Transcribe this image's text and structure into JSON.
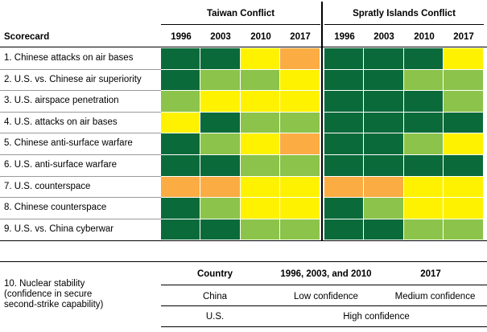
{
  "colors": {
    "dark_green": "#0b6a3a",
    "light_green": "#8cc34a",
    "yellow": "#fff200",
    "orange": "#fbac43"
  },
  "groups": [
    "Taiwan Conflict",
    "Spratly Islands Conflict"
  ],
  "scorecard_header": "Scorecard",
  "years": [
    "1996",
    "2003",
    "2010",
    "2017"
  ],
  "rows": [
    {
      "label": "1. Chinese attacks on air bases",
      "taiwan": [
        "dark_green",
        "dark_green",
        "yellow",
        "orange"
      ],
      "spratly": [
        "dark_green",
        "dark_green",
        "dark_green",
        "yellow"
      ]
    },
    {
      "label": "2. U.S. vs. Chinese air superiority",
      "taiwan": [
        "dark_green",
        "light_green",
        "light_green",
        "yellow"
      ],
      "spratly": [
        "dark_green",
        "dark_green",
        "light_green",
        "light_green"
      ]
    },
    {
      "label": "3. U.S. airspace penetration",
      "taiwan": [
        "light_green",
        "yellow",
        "yellow",
        "yellow"
      ],
      "spratly": [
        "dark_green",
        "dark_green",
        "dark_green",
        "light_green"
      ]
    },
    {
      "label": "4. U.S. attacks on air bases",
      "taiwan": [
        "yellow",
        "dark_green",
        "light_green",
        "light_green"
      ],
      "spratly": [
        "dark_green",
        "dark_green",
        "dark_green",
        "dark_green"
      ]
    },
    {
      "label": "5. Chinese anti-surface warfare",
      "taiwan": [
        "dark_green",
        "light_green",
        "yellow",
        "orange"
      ],
      "spratly": [
        "dark_green",
        "dark_green",
        "light_green",
        "yellow"
      ]
    },
    {
      "label": "6. U.S. anti-surface warfare",
      "taiwan": [
        "dark_green",
        "dark_green",
        "light_green",
        "light_green"
      ],
      "spratly": [
        "dark_green",
        "dark_green",
        "dark_green",
        "dark_green"
      ]
    },
    {
      "label": "7. U.S. counterspace",
      "taiwan": [
        "orange",
        "orange",
        "yellow",
        "yellow"
      ],
      "spratly": [
        "orange",
        "orange",
        "yellow",
        "yellow"
      ]
    },
    {
      "label": "8. Chinese counterspace",
      "taiwan": [
        "dark_green",
        "light_green",
        "yellow",
        "yellow"
      ],
      "spratly": [
        "dark_green",
        "light_green",
        "yellow",
        "yellow"
      ]
    },
    {
      "label": "9. U.S. vs. China cyberwar",
      "taiwan": [
        "dark_green",
        "dark_green",
        "light_green",
        "light_green"
      ],
      "spratly": [
        "dark_green",
        "dark_green",
        "light_green",
        "light_green"
      ]
    }
  ],
  "nuclear": {
    "label_lines": [
      "10. Nuclear stability",
      "(confidence in secure",
      "second-strike capability)"
    ],
    "col_country": "Country",
    "col_early": "1996, 2003, and 2010",
    "col_late": "2017",
    "china": {
      "country": "China",
      "early": "Low confidence",
      "late": "Medium confidence"
    },
    "us": {
      "country": "U.S.",
      "both": "High confidence"
    }
  }
}
